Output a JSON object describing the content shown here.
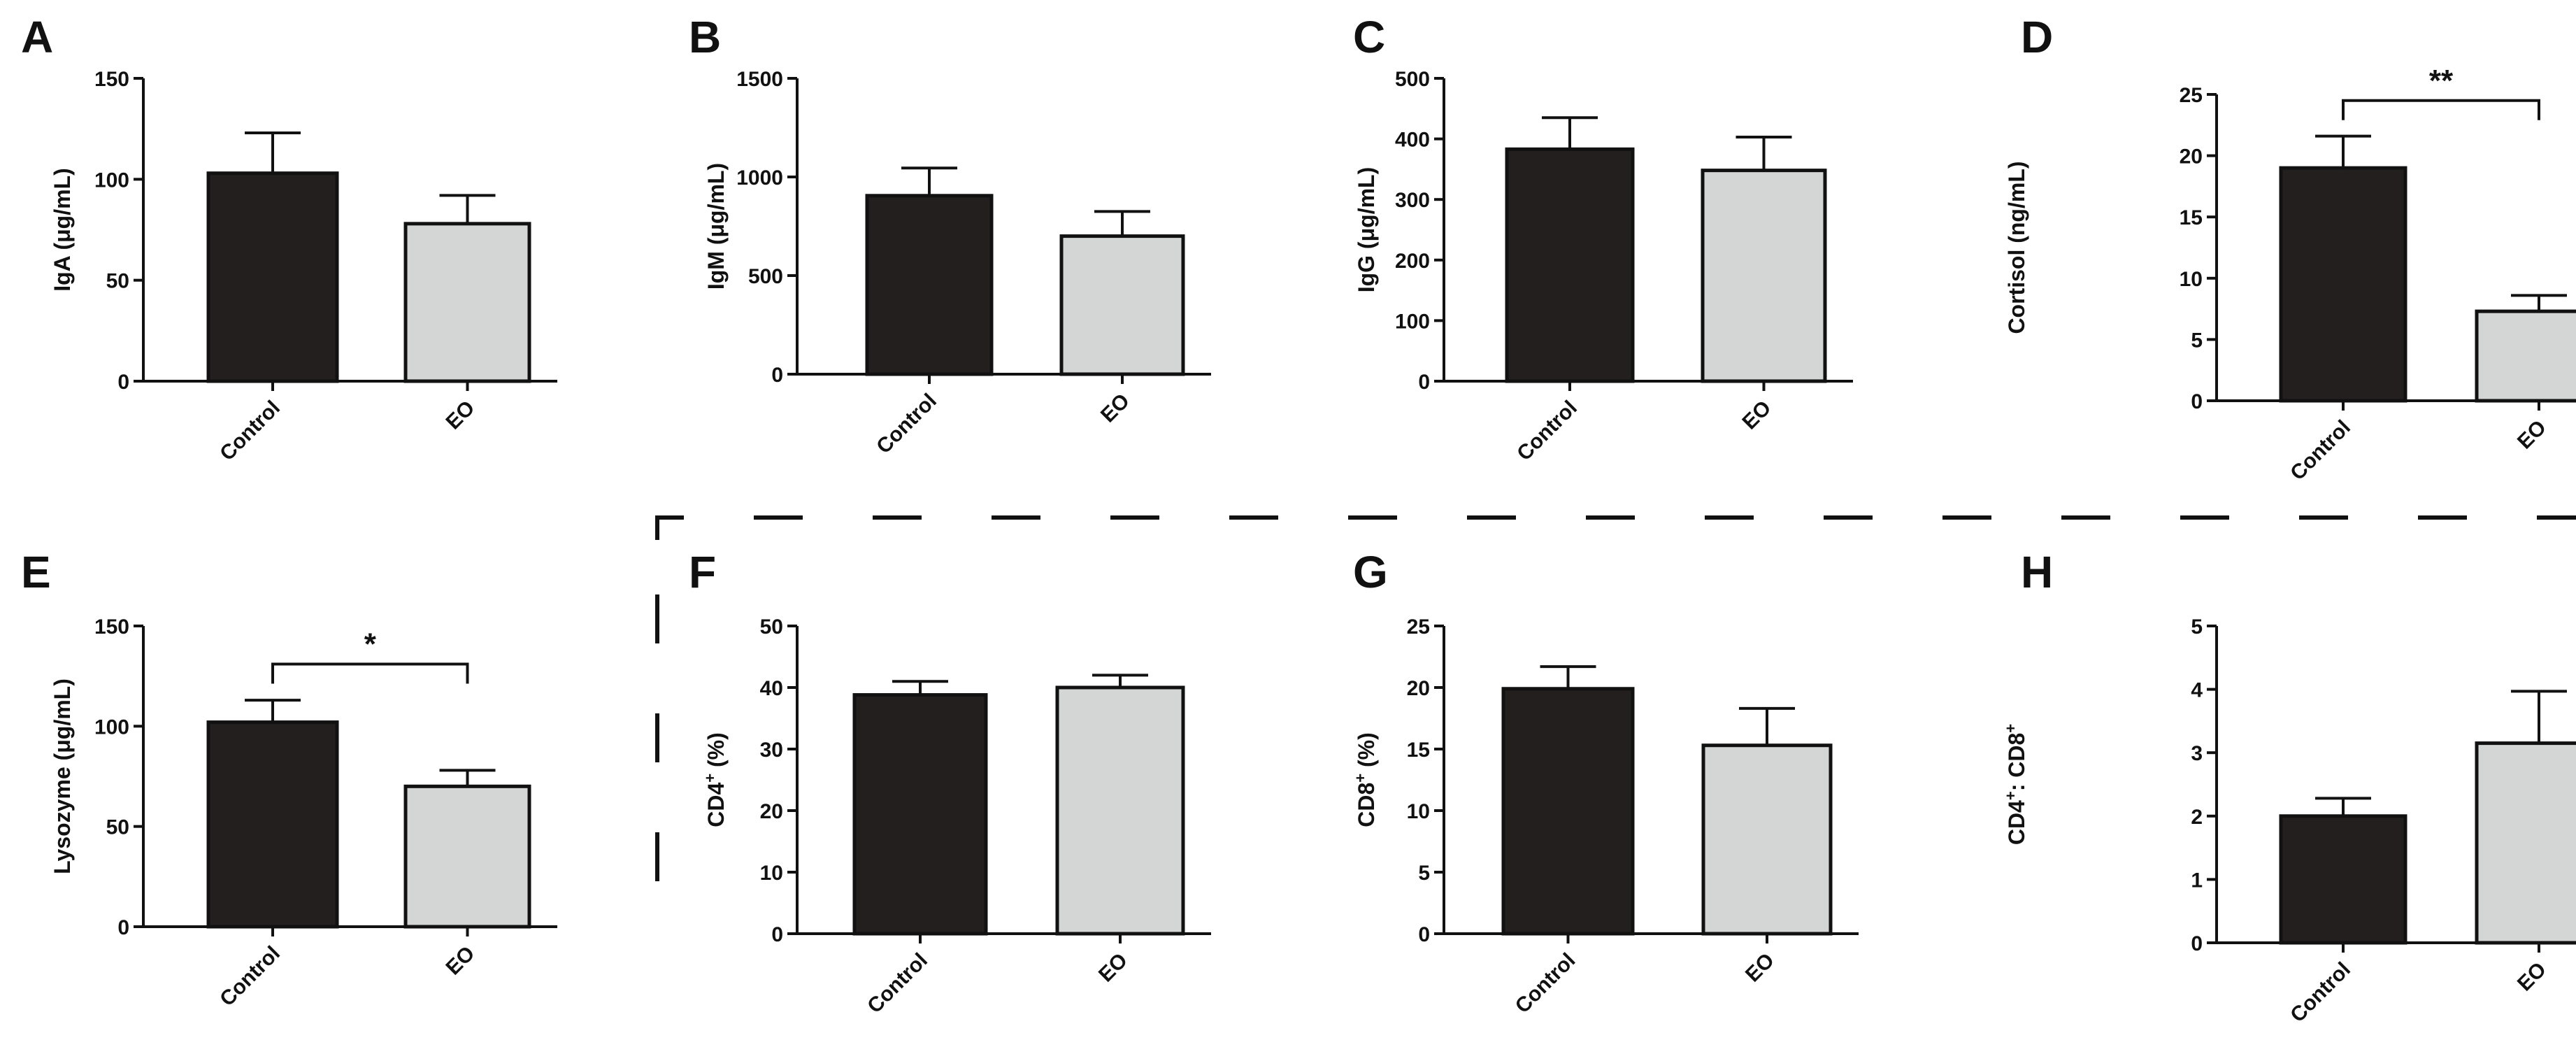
{
  "chart_data": [
    {
      "panel": "A",
      "type": "bar",
      "categories": [
        "Control",
        "EO"
      ],
      "values": [
        103,
        78
      ],
      "errors": [
        20,
        14
      ],
      "ylabel_parts": [
        "IgA",
        "(μg/mL)"
      ],
      "yticks": [
        "0",
        "50",
        "100",
        "150"
      ],
      "ylim": [
        0,
        150
      ],
      "significance": null,
      "colors": [
        "#231f1e",
        "#d3d6d4"
      ]
    },
    {
      "panel": "B",
      "type": "bar",
      "categories": [
        "Control",
        "EO"
      ],
      "values": [
        905,
        700
      ],
      "errors": [
        140,
        125
      ],
      "ylabel_parts": [
        "IgM",
        "(μg/mL)"
      ],
      "yticks": [
        "0",
        "500",
        "1000",
        "1500"
      ],
      "ylim": [
        0,
        1500
      ],
      "significance": null,
      "colors": [
        "#231f1e",
        "#d3d6d4"
      ]
    },
    {
      "panel": "C",
      "type": "bar",
      "categories": [
        "Control",
        "EO"
      ],
      "values": [
        383,
        348
      ],
      "errors": [
        52,
        55
      ],
      "ylabel_parts": [
        "IgG",
        "(μg/mL)"
      ],
      "yticks": [
        "0",
        "100",
        "200",
        "300",
        "400",
        "500"
      ],
      "ylim": [
        0,
        500
      ],
      "significance": null,
      "colors": [
        "#231f1e",
        "#d3d6d4"
      ]
    },
    {
      "panel": "D",
      "type": "bar",
      "categories": [
        "Control",
        "EO"
      ],
      "values": [
        19.0,
        7.3
      ],
      "errors": [
        2.6,
        1.3
      ],
      "ylabel_parts": [
        "Cortisol",
        "(ng/mL)"
      ],
      "yticks": [
        "0",
        "5",
        "10",
        "15",
        "20",
        "25"
      ],
      "ylim": [
        0,
        25
      ],
      "significance": {
        "label": "**",
        "level": 24.5
      },
      "colors": [
        "#231f1e",
        "#d3d6d4"
      ]
    },
    {
      "panel": "E",
      "type": "bar",
      "categories": [
        "Control",
        "EO"
      ],
      "values": [
        102,
        70
      ],
      "errors": [
        11,
        8
      ],
      "ylabel_parts": [
        "Lysozyme",
        "(μg/mL)"
      ],
      "yticks": [
        "0",
        "50",
        "100",
        "150"
      ],
      "ylim": [
        0,
        150
      ],
      "significance": {
        "label": "*",
        "level": 131
      },
      "colors": [
        "#231f1e",
        "#d3d6d4"
      ]
    },
    {
      "panel": "F",
      "type": "bar",
      "categories": [
        "Control",
        "EO"
      ],
      "values": [
        38.8,
        40.0
      ],
      "errors": [
        2.2,
        2.0
      ],
      "ylabel_parts": [
        "CD4",
        "+",
        " (%)"
      ],
      "yticks": [
        "0",
        "10",
        "20",
        "30",
        "40",
        "50"
      ],
      "ylim": [
        0,
        50
      ],
      "significance": null,
      "colors": [
        "#231f1e",
        "#d3d6d4"
      ]
    },
    {
      "panel": "G",
      "type": "bar",
      "categories": [
        "Control",
        "EO"
      ],
      "values": [
        19.9,
        15.3
      ],
      "errors": [
        1.8,
        3.0
      ],
      "ylabel_parts": [
        "CD8",
        "+",
        " (%)"
      ],
      "yticks": [
        "0",
        "5",
        "10",
        "15",
        "20",
        "25"
      ],
      "ylim": [
        0,
        25
      ],
      "significance": null,
      "colors": [
        "#231f1e",
        "#d3d6d4"
      ]
    },
    {
      "panel": "H",
      "type": "bar",
      "categories": [
        "Control",
        "EO"
      ],
      "values": [
        2.0,
        3.15
      ],
      "errors": [
        0.28,
        0.82
      ],
      "ylabel_parts": [
        "CD4",
        "+",
        ": CD8",
        "+"
      ],
      "yticks": [
        "0",
        "1",
        "2",
        "3",
        "4",
        "5"
      ],
      "ylim": [
        0,
        5
      ],
      "significance": null,
      "colors": [
        "#231f1e",
        "#d3d6d4"
      ]
    }
  ]
}
